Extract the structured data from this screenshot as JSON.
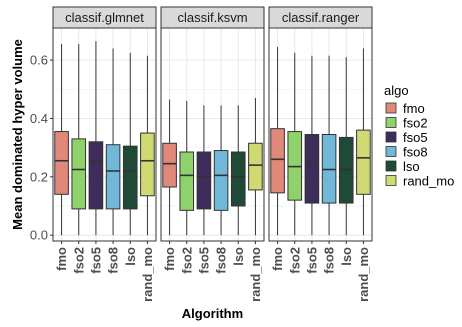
{
  "chart_data": {
    "type": "boxplot",
    "xlabel": "Algorithm",
    "ylabel": "Mean dominated hyper volume",
    "ylim": [
      -0.02,
      0.71
    ],
    "yticks": [
      0.0,
      0.2,
      0.4,
      0.6
    ],
    "ytick_labels": [
      "0.0",
      "0.2",
      "0.4",
      "0.6"
    ],
    "categories": [
      "fmo",
      "fso2",
      "fso5",
      "fso8",
      "lso",
      "rand_mo"
    ],
    "colors": [
      "#E0887A",
      "#8FD16A",
      "#3E2C5A",
      "#6FB8D8",
      "#1F4A35",
      "#CFDB72"
    ],
    "legend": {
      "title": "algo",
      "position": "right",
      "items": [
        "fmo",
        "fso2",
        "fso5",
        "fso8",
        "lso",
        "rand_mo"
      ]
    },
    "grid": true,
    "panels": [
      {
        "title": "classif.glmnet",
        "boxes": [
          {
            "algo": "fmo",
            "min": 0.0,
            "q1": 0.14,
            "median": 0.255,
            "q3": 0.355,
            "max": 0.655
          },
          {
            "algo": "fso2",
            "min": 0.0,
            "q1": 0.09,
            "median": 0.225,
            "q3": 0.33,
            "max": 0.655
          },
          {
            "algo": "fso5",
            "min": 0.0,
            "q1": 0.09,
            "median": 0.255,
            "q3": 0.32,
            "max": 0.665
          },
          {
            "algo": "fso8",
            "min": 0.0,
            "q1": 0.09,
            "median": 0.22,
            "q3": 0.31,
            "max": 0.64
          },
          {
            "algo": "lso",
            "min": 0.0,
            "q1": 0.09,
            "median": 0.22,
            "q3": 0.305,
            "max": 0.625
          },
          {
            "algo": "rand_mo",
            "min": 0.0,
            "q1": 0.135,
            "median": 0.255,
            "q3": 0.35,
            "max": 0.615
          }
        ]
      },
      {
        "title": "classif.ksvm",
        "boxes": [
          {
            "algo": "fmo",
            "min": 0.0,
            "q1": 0.165,
            "median": 0.245,
            "q3": 0.315,
            "max": 0.465
          },
          {
            "algo": "fso2",
            "min": 0.0,
            "q1": 0.085,
            "median": 0.205,
            "q3": 0.285,
            "max": 0.46
          },
          {
            "algo": "fso5",
            "min": 0.0,
            "q1": 0.09,
            "median": 0.2,
            "q3": 0.285,
            "max": 0.445
          },
          {
            "algo": "fso8",
            "min": 0.0,
            "q1": 0.085,
            "median": 0.205,
            "q3": 0.29,
            "max": 0.445
          },
          {
            "algo": "lso",
            "min": 0.0,
            "q1": 0.1,
            "median": 0.2,
            "q3": 0.285,
            "max": 0.445
          },
          {
            "algo": "rand_mo",
            "min": 0.0,
            "q1": 0.155,
            "median": 0.24,
            "q3": 0.315,
            "max": 0.47
          }
        ]
      },
      {
        "title": "classif.ranger",
        "boxes": [
          {
            "algo": "fmo",
            "min": 0.0,
            "q1": 0.145,
            "median": 0.26,
            "q3": 0.365,
            "max": 0.645
          },
          {
            "algo": "fso2",
            "min": 0.0,
            "q1": 0.12,
            "median": 0.235,
            "q3": 0.355,
            "max": 0.625
          },
          {
            "algo": "fso5",
            "min": 0.0,
            "q1": 0.11,
            "median": 0.24,
            "q3": 0.345,
            "max": 0.615
          },
          {
            "algo": "fso8",
            "min": 0.0,
            "q1": 0.11,
            "median": 0.225,
            "q3": 0.345,
            "max": 0.615
          },
          {
            "algo": "lso",
            "min": 0.0,
            "q1": 0.11,
            "median": 0.225,
            "q3": 0.335,
            "max": 0.61
          },
          {
            "algo": "rand_mo",
            "min": 0.0,
            "q1": 0.14,
            "median": 0.265,
            "q3": 0.36,
            "max": 0.64
          }
        ]
      }
    ]
  }
}
